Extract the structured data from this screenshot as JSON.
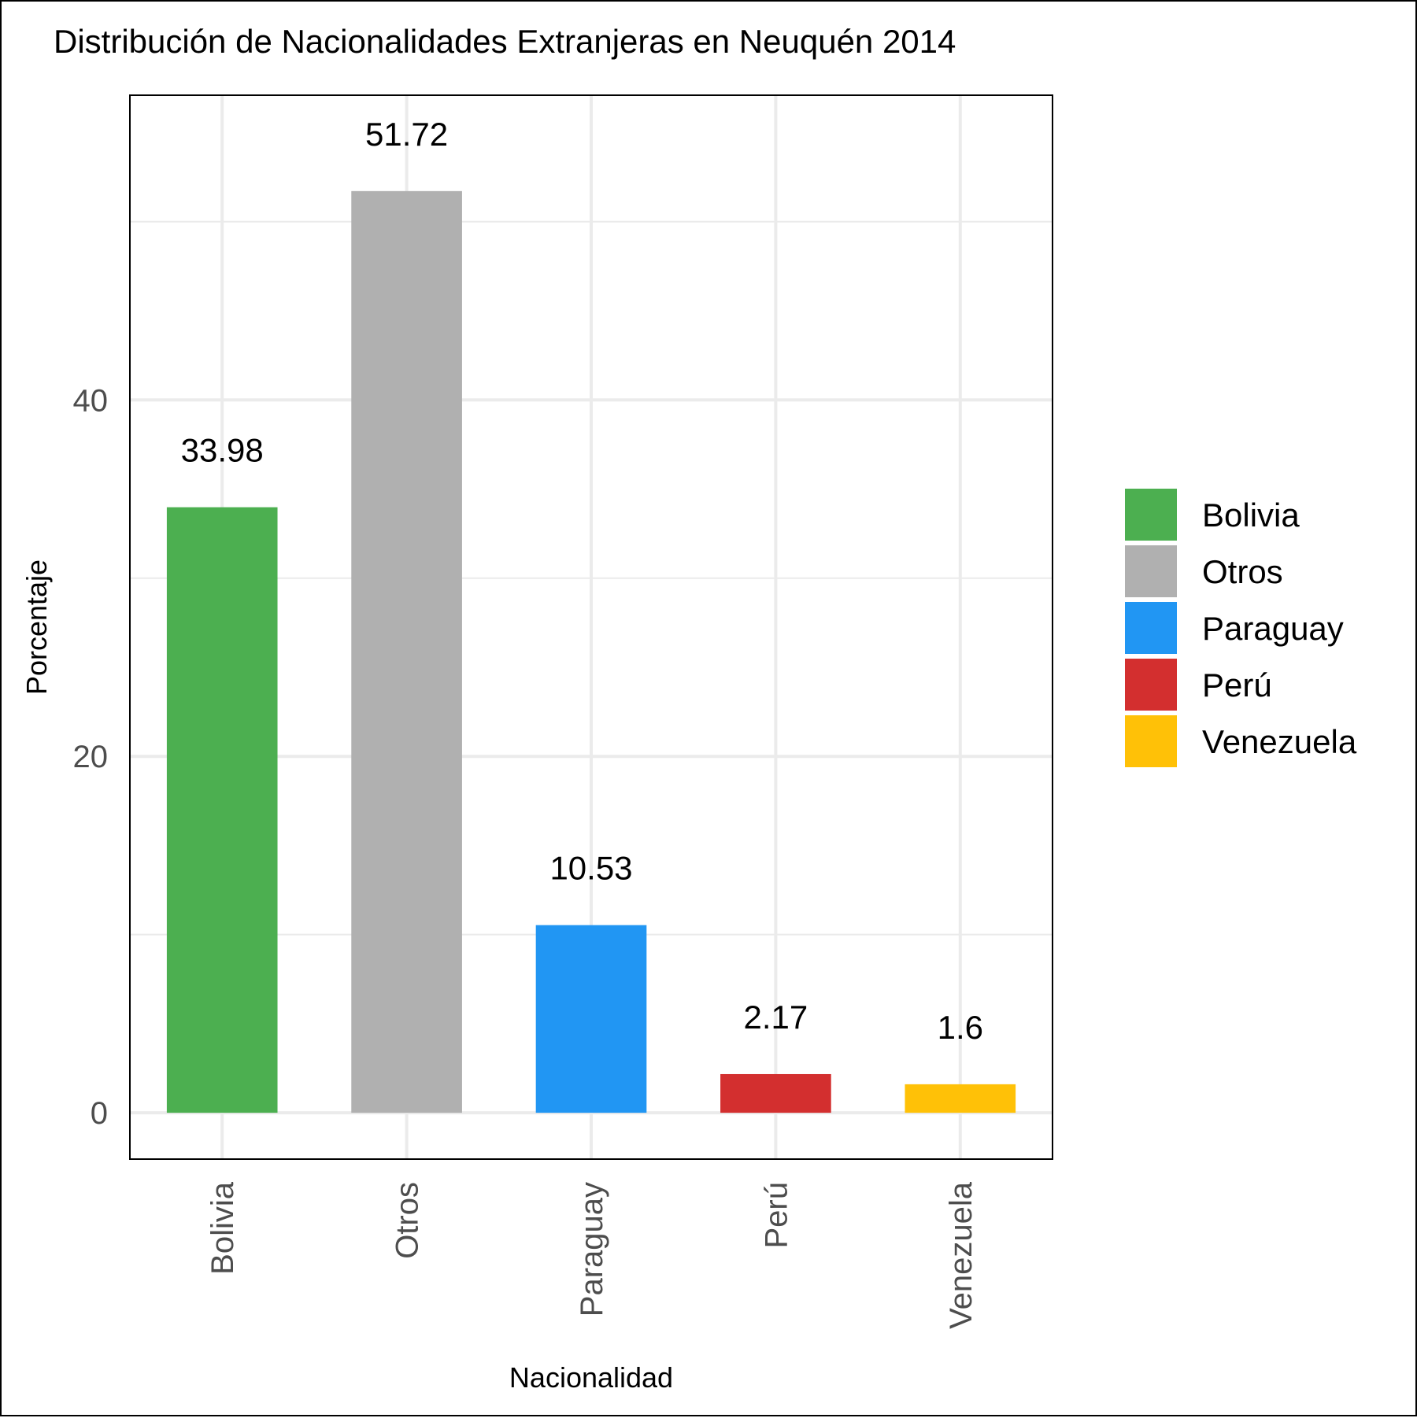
{
  "chart_data": {
    "type": "bar",
    "title": "Distribución de Nacionalidades Extranjeras en Neuquén 2014",
    "xlabel": "Nacionalidad",
    "ylabel": "Porcentaje",
    "categories": [
      "Bolivia",
      "Otros",
      "Paraguay",
      "Perú",
      "Venezuela"
    ],
    "values": [
      33.98,
      51.72,
      10.53,
      2.17,
      1.6
    ],
    "value_labels": [
      "33.98",
      "51.72",
      "10.53",
      "2.17",
      "1.6"
    ],
    "colors": [
      "#4caf50",
      "#b0b0b0",
      "#2196f3",
      "#d32f2f",
      "#ffc107"
    ],
    "yticks": [
      0,
      20,
      40
    ],
    "ytick_labels": [
      "0",
      "20",
      "40"
    ],
    "ylim": [
      -2.6,
      57.1
    ],
    "grid": true,
    "legend": {
      "position": "right",
      "entries": [
        "Bolivia",
        "Otros",
        "Paraguay",
        "Perú",
        "Venezuela"
      ]
    }
  }
}
